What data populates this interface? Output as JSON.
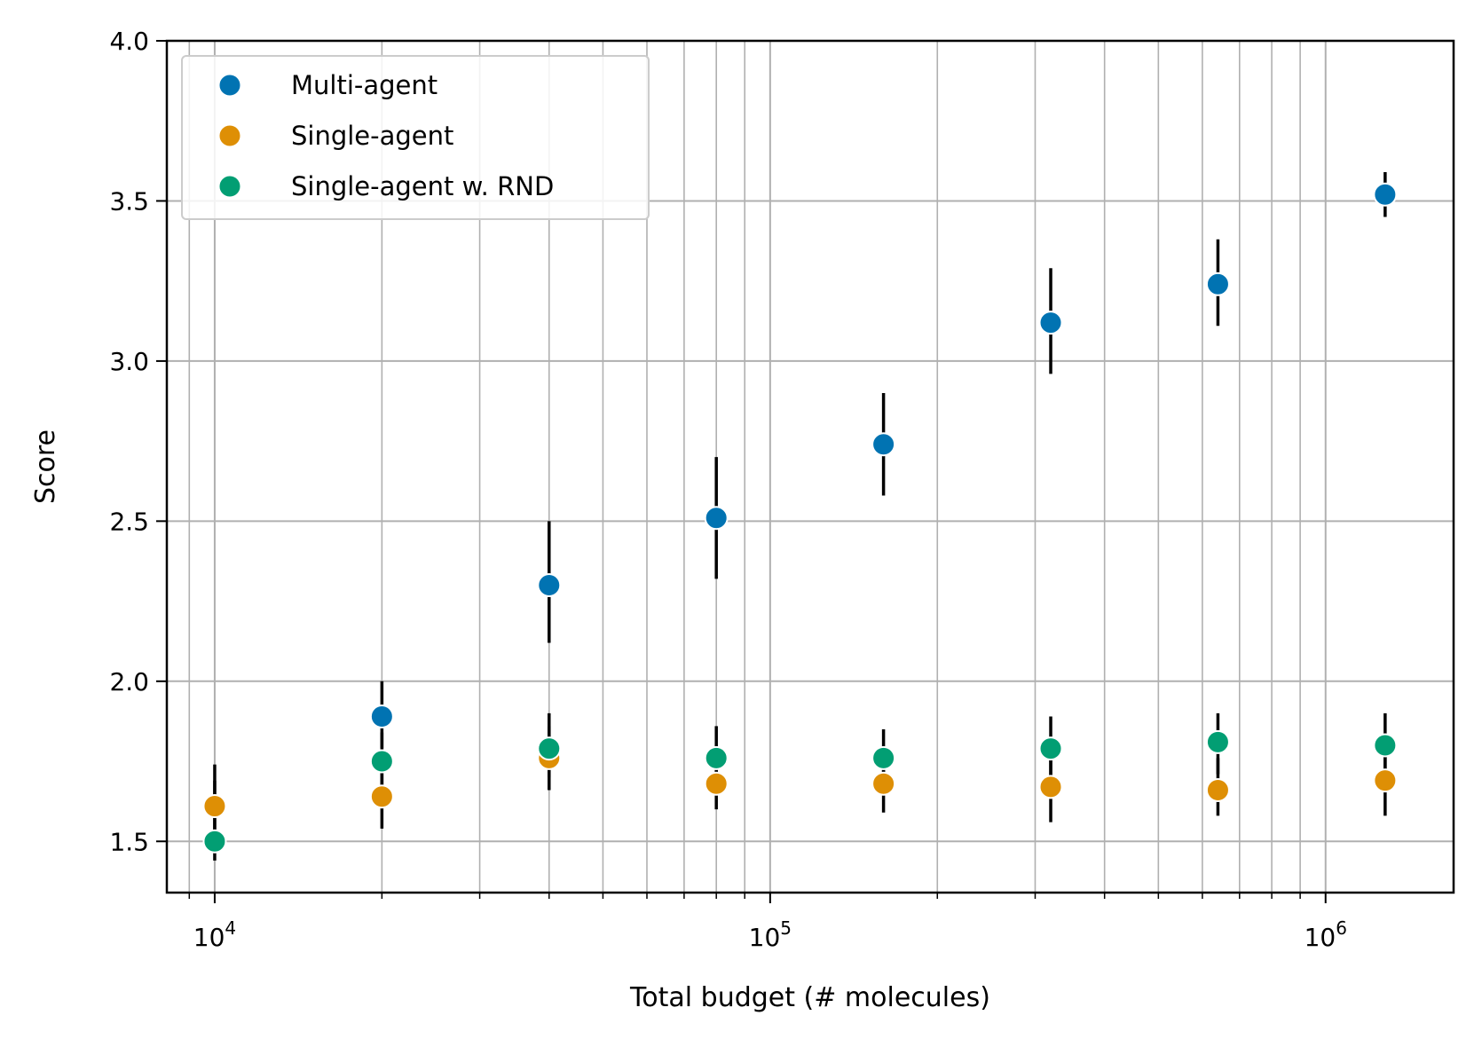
{
  "chart_data": {
    "type": "scatter",
    "title": "",
    "xlabel": "Total budget (# molecules)",
    "ylabel": "Score",
    "xscale": "log",
    "xlim": [
      8200,
      1700000
    ],
    "ylim": [
      1.34,
      4.0
    ],
    "x_tick_labels": [
      {
        "value": 10000,
        "base": "10",
        "exp": "4"
      },
      {
        "value": 100000,
        "base": "10",
        "exp": "5"
      },
      {
        "value": 1000000,
        "base": "10",
        "exp": "6"
      }
    ],
    "y_ticks": [
      1.5,
      2.0,
      2.5,
      3.0,
      3.5,
      4.0
    ],
    "y_tick_labels": [
      "1.5",
      "2.0",
      "2.5",
      "3.0",
      "3.5",
      "4.0"
    ],
    "grid": true,
    "legend_position": "top-left",
    "x": [
      10000,
      20000,
      40000,
      80000,
      160000,
      320000,
      640000,
      1280000
    ],
    "series": [
      {
        "name": "Multi-agent",
        "color": "#0173b2",
        "values": [
          null,
          1.89,
          2.3,
          2.51,
          2.74,
          3.12,
          3.24,
          3.52
        ],
        "error": [
          null,
          [
            1.79,
            2.0
          ],
          [
            2.12,
            2.5
          ],
          [
            2.32,
            2.7
          ],
          [
            2.58,
            2.9
          ],
          [
            2.96,
            3.29
          ],
          [
            3.11,
            3.38
          ],
          [
            3.45,
            3.59
          ]
        ]
      },
      {
        "name": "Single-agent",
        "color": "#de8f05",
        "values": [
          1.61,
          1.64,
          1.76,
          1.68,
          1.68,
          1.67,
          1.66,
          1.69
        ],
        "error": [
          [
            1.53,
            1.69
          ],
          [
            1.54,
            1.75
          ],
          [
            1.66,
            1.86
          ],
          [
            1.6,
            1.75
          ],
          [
            1.59,
            1.77
          ],
          [
            1.56,
            1.79
          ],
          [
            1.58,
            1.76
          ],
          [
            1.58,
            1.8
          ]
        ]
      },
      {
        "name": "Single-agent w. RND",
        "color": "#029e73",
        "values": [
          1.5,
          1.75,
          1.79,
          1.76,
          1.76,
          1.79,
          1.81,
          1.8
        ],
        "error": [
          [
            1.44,
            1.74
          ],
          [
            1.64,
            1.84
          ],
          [
            1.7,
            1.9
          ],
          [
            1.67,
            1.86
          ],
          [
            1.68,
            1.85
          ],
          [
            1.69,
            1.89
          ],
          [
            1.71,
            1.9
          ],
          [
            1.71,
            1.9
          ]
        ]
      }
    ]
  }
}
